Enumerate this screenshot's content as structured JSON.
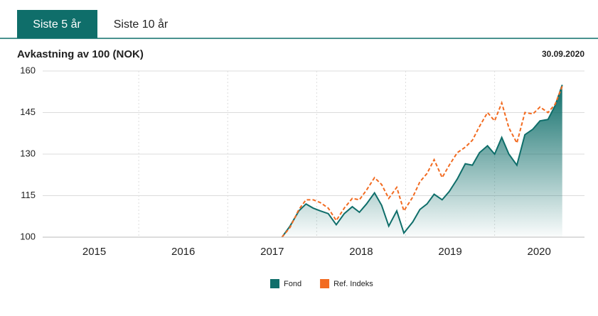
{
  "tabs": [
    "Siste 5 år",
    "Siste 10 år"
  ],
  "chart_data": {
    "type": "line",
    "title": "Avkastning av 100 (NOK)",
    "date": "30.09.2020",
    "x": [
      2017.61,
      2017.7,
      2017.8,
      2017.88,
      2017.96,
      2018.04,
      2018.13,
      2018.22,
      2018.31,
      2018.4,
      2018.48,
      2018.56,
      2018.65,
      2018.73,
      2018.81,
      2018.9,
      2018.98,
      2019.08,
      2019.16,
      2019.24,
      2019.32,
      2019.41,
      2019.49,
      2019.58,
      2019.67,
      2019.75,
      2019.83,
      2019.92,
      2020.0,
      2020.08,
      2020.16,
      2020.25,
      2020.34,
      2020.43,
      2020.51,
      2020.6,
      2020.68,
      2020.76
    ],
    "series": [
      {
        "name": "Fond",
        "color": "#0f6e6a",
        "area": true,
        "values": [
          100,
          104,
          109.5,
          112,
          110.5,
          109.5,
          108.5,
          104.5,
          108.5,
          111,
          109,
          112,
          116,
          111.5,
          104,
          109.5,
          101.5,
          105.5,
          110,
          112,
          115.5,
          113.5,
          116.5,
          121,
          126.5,
          126,
          130.5,
          133,
          130,
          136,
          130,
          126,
          137,
          139,
          142,
          142.5,
          147.5,
          155
        ]
      },
      {
        "name": "Ref. Indeks",
        "color": "#f26b21",
        "dashed": true,
        "values": [
          100,
          103.5,
          110,
          113.5,
          113.5,
          112.5,
          110.5,
          106,
          110.5,
          114,
          113.5,
          117,
          121.5,
          119,
          114,
          118,
          109.5,
          114.5,
          120,
          123,
          128,
          121.5,
          126,
          130.5,
          132.5,
          135,
          140,
          145,
          142,
          148.5,
          139.5,
          134,
          145,
          144.5,
          147,
          145,
          148,
          154.5
        ]
      }
    ],
    "xlim": [
      2014.92,
      2021.01
    ],
    "xticks": [
      {
        "value": 2015.5,
        "label": "2015"
      },
      {
        "value": 2016.5,
        "label": "2016"
      },
      {
        "value": 2017.5,
        "label": "2017"
      },
      {
        "value": 2018.5,
        "label": "2018"
      },
      {
        "value": 2019.5,
        "label": "2019"
      },
      {
        "value": 2020.5,
        "label": "2020"
      }
    ],
    "xgrid": [
      2016,
      2017,
      2018,
      2019,
      2020
    ],
    "ylim": [
      100,
      160
    ],
    "yticks": [
      100,
      115,
      130,
      145,
      160
    ],
    "grid": true,
    "legend": "bottom"
  }
}
